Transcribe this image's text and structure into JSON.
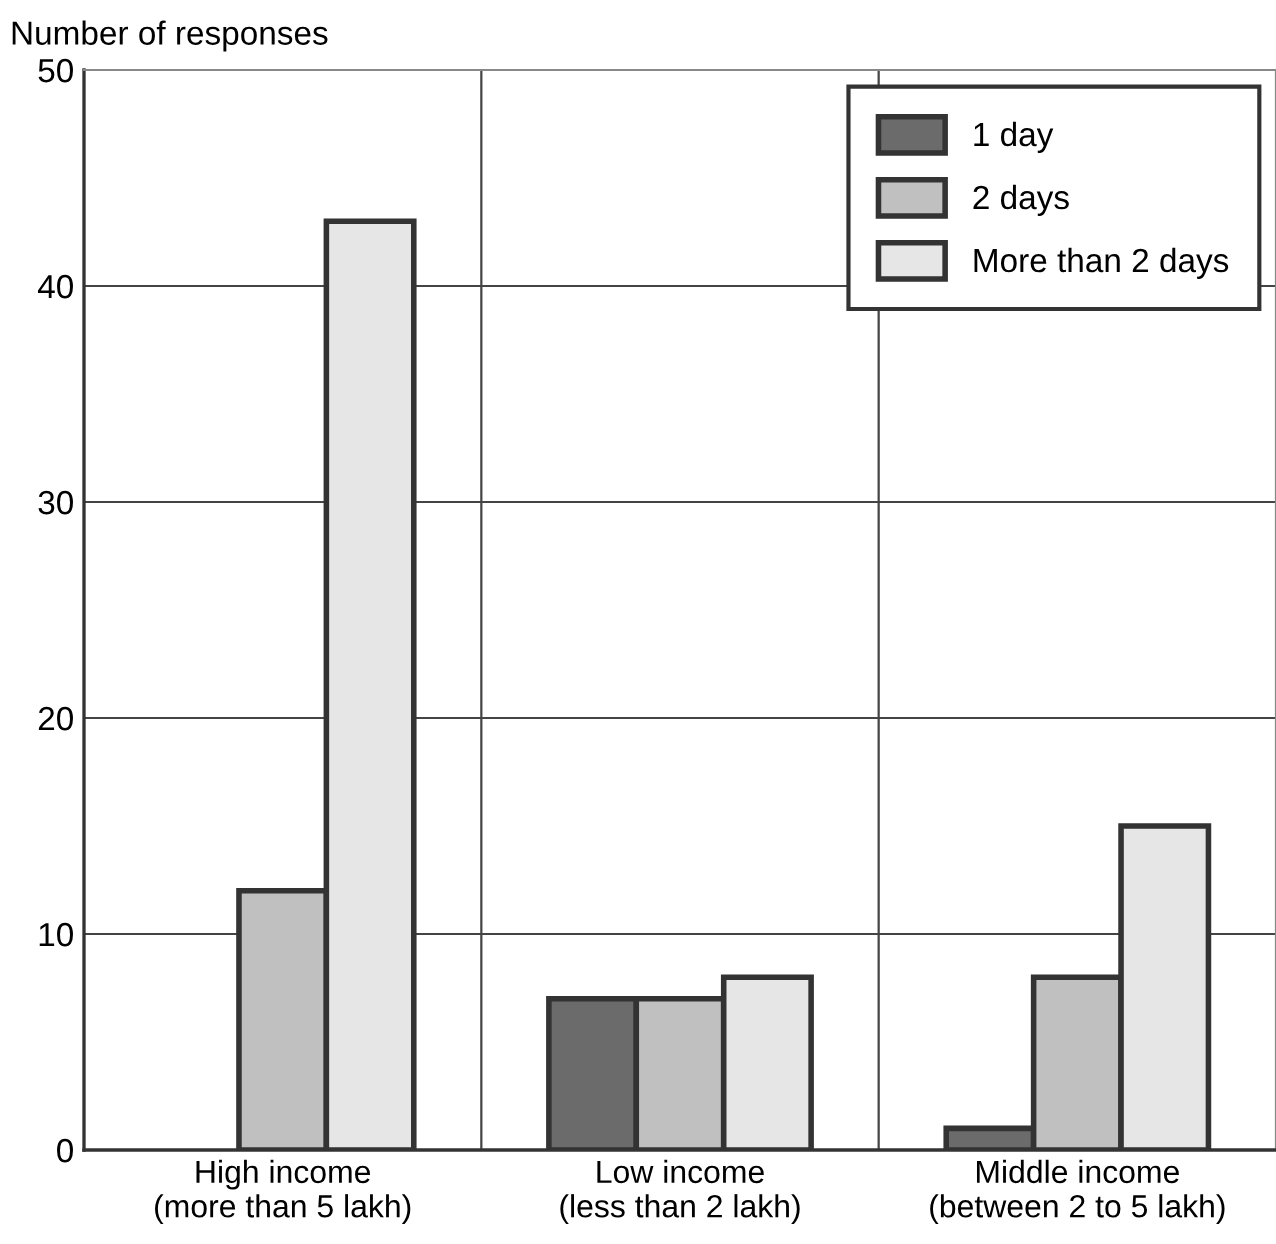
{
  "chart_data": {
    "type": "bar",
    "ylabel": "Number of responses",
    "categories": [
      "High income\n(more than 5 lakh)",
      "Low income\n(less than 2 lakh)",
      "Middle income\n(between 2 to 5 lakh)"
    ],
    "series": [
      {
        "name": "1 day",
        "color": "#6b6b6b",
        "values": [
          null,
          7,
          1
        ]
      },
      {
        "name": "2 days",
        "color": "#c0c0c0",
        "values": [
          12,
          7,
          8
        ]
      },
      {
        "name": "More than 2 days",
        "color": "#e6e6e6",
        "values": [
          43,
          8,
          15
        ]
      }
    ],
    "ylim": [
      0,
      50
    ],
    "yticks": [
      0,
      10,
      20,
      30,
      40,
      50
    ],
    "grid": true,
    "legend": "top right"
  }
}
